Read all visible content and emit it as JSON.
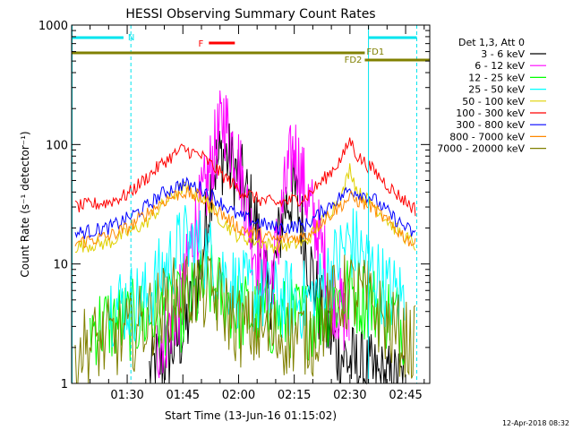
{
  "colors": {
    "background": "#ffffff",
    "axis": "#000000",
    "det_3_6": "#000000",
    "det_6_12": "#ff00ff",
    "det_12_25": "#00ff00",
    "det_25_50": "#00ffff",
    "det_50_100": "#e0d000",
    "det_100_300": "#ff0000",
    "det_300_800": "#0000ff",
    "det_800_7000": "#ff8800",
    "det_7000_20000": "#808000",
    "saa_night_marker": "#00e5ee",
    "flag_flare": "#ff0000",
    "flag_fd": "#808000"
  },
  "chart_data": {
    "type": "line",
    "title": "HESSI Observing Summary Count Rates",
    "xlabel": "Start Time (13-Jun-16 01:15:02)",
    "ylabel": "Count Rate (s⁻¹ detector⁻¹)",
    "y_scale": "log",
    "ylim": [
      1,
      1000
    ],
    "xlim": [
      "01:15:02",
      "02:51:30"
    ],
    "x_ticks": [
      "01:30",
      "01:45",
      "02:00",
      "02:15",
      "02:30",
      "02:45"
    ],
    "y_ticks": [
      "1",
      "10",
      "100",
      "1000"
    ],
    "legend_title": "Det 1,3, Att 0",
    "legend_position": "right",
    "series": [
      {
        "name": "3 - 6 keV",
        "color_key": "det_3_6",
        "x": [
          "01:36",
          "01:42",
          "01:46",
          "01:50",
          "01:53",
          "01:56",
          "02:00",
          "02:05",
          "02:08",
          "02:10",
          "02:12",
          "02:15",
          "02:18",
          "02:22",
          "02:26",
          "02:30",
          "02:35",
          "02:40",
          "02:45"
        ],
        "values": [
          1.2,
          2,
          3,
          10,
          60,
          85,
          55,
          20,
          5,
          10,
          30,
          40,
          15,
          4,
          2,
          1.5,
          1.2,
          1,
          1
        ]
      },
      {
        "name": "6 - 12 keV",
        "color_key": "det_6_12",
        "x": [
          "01:38",
          "01:45",
          "01:47",
          "01:50",
          "01:54",
          "01:56",
          "02:00",
          "02:04",
          "02:08",
          "02:10",
          "02:13",
          "02:15",
          "02:18",
          "02:22",
          "02:25",
          "02:30"
        ],
        "values": [
          2,
          5,
          14,
          30,
          100,
          170,
          70,
          15,
          6,
          12,
          50,
          95,
          40,
          15,
          6,
          3
        ]
      },
      {
        "name": "12 - 25 keV",
        "color_key": "det_12_25",
        "x": [
          "01:20",
          "01:35",
          "01:45",
          "01:52",
          "02:00",
          "02:10",
          "02:20",
          "02:30",
          "02:40",
          "02:45"
        ],
        "values": [
          3,
          3.5,
          4,
          7,
          4,
          3.5,
          3.5,
          6,
          4,
          3
        ]
      },
      {
        "name": "25 - 50 keV",
        "color_key": "det_25_50",
        "x": [
          "01:25",
          "01:35",
          "01:40",
          "01:45",
          "01:50",
          "01:55",
          "02:00",
          "02:10",
          "02:20",
          "02:25",
          "02:30",
          "02:35",
          "02:40",
          "02:45"
        ],
        "values": [
          4.5,
          5,
          9,
          15,
          14,
          9,
          6,
          5,
          5,
          9,
          16,
          10,
          6,
          5
        ]
      },
      {
        "name": "50 - 100 keV",
        "color_key": "det_50_100",
        "x": [
          "01:16",
          "01:25",
          "01:35",
          "01:40",
          "01:45",
          "01:50",
          "01:55",
          "02:00",
          "02:10",
          "02:18",
          "02:24",
          "02:28",
          "02:30",
          "02:32",
          "02:36",
          "02:42",
          "02:48"
        ],
        "values": [
          14,
          15,
          22,
          32,
          44,
          36,
          24,
          17,
          14,
          15,
          26,
          38,
          65,
          40,
          32,
          20,
          14
        ]
      },
      {
        "name": "100 - 300 keV",
        "color_key": "det_100_300",
        "x": [
          "01:16",
          "01:25",
          "01:30",
          "01:35",
          "01:40",
          "01:45",
          "01:50",
          "01:55",
          "02:00",
          "02:05",
          "02:10",
          "02:18",
          "02:24",
          "02:28",
          "02:30",
          "02:32",
          "02:36",
          "02:42",
          "02:48"
        ],
        "values": [
          30,
          33,
          38,
          52,
          72,
          92,
          80,
          58,
          42,
          35,
          32,
          36,
          55,
          78,
          110,
          80,
          62,
          40,
          28
        ]
      },
      {
        "name": "300 - 800 keV",
        "color_key": "det_300_800",
        "x": [
          "01:16",
          "01:25",
          "01:30",
          "01:35",
          "01:40",
          "01:45",
          "01:50",
          "01:55",
          "02:00",
          "02:10",
          "02:18",
          "02:24",
          "02:30",
          "02:36",
          "02:42",
          "02:48"
        ],
        "values": [
          18,
          20,
          24,
          30,
          40,
          47,
          43,
          33,
          25,
          20,
          21,
          30,
          42,
          36,
          24,
          17
        ]
      },
      {
        "name": "800 - 7000 keV",
        "color_key": "det_800_7000",
        "x": [
          "01:16",
          "01:25",
          "01:30",
          "01:35",
          "01:40",
          "01:45",
          "01:50",
          "01:55",
          "02:00",
          "02:10",
          "02:18",
          "02:24",
          "02:30",
          "02:36",
          "02:42",
          "02:48"
        ],
        "values": [
          15,
          17,
          20,
          26,
          34,
          40,
          36,
          27,
          20,
          16,
          17,
          25,
          36,
          30,
          20,
          14
        ]
      },
      {
        "name": "7000 - 20000 keV",
        "color_key": "det_7000_20000",
        "x": [
          "01:16",
          "01:30",
          "01:38",
          "01:45",
          "01:50",
          "01:55",
          "02:00",
          "02:10",
          "02:20",
          "02:25",
          "02:30",
          "02:35",
          "02:40",
          "02:48"
        ],
        "values": [
          2,
          2.5,
          4,
          6,
          6,
          5,
          3,
          2.5,
          2.5,
          4.5,
          6,
          5,
          3,
          2
        ]
      }
    ],
    "annotations": {
      "saa_start_vlines": [
        "01:15:10",
        "02:35:00"
      ],
      "saa_end_vlines": [
        "01:31:00",
        "02:48:00"
      ],
      "night_bars": [
        [
          "01:15:10",
          "01:29:00"
        ],
        [
          "02:35:00",
          "02:48:00"
        ]
      ],
      "night_label": "N",
      "flare_bar": [
        "01:52:00",
        "01:59:00"
      ],
      "flare_label": "F",
      "fd1_bar": [
        "01:15:02",
        "02:34:00"
      ],
      "fd1_label": "FD1",
      "fd2_bar": [
        "02:34:00",
        "02:51:30"
      ],
      "fd2_label": "FD2"
    }
  },
  "footer": {
    "timestamp": "12-Apr-2018 08:32"
  }
}
